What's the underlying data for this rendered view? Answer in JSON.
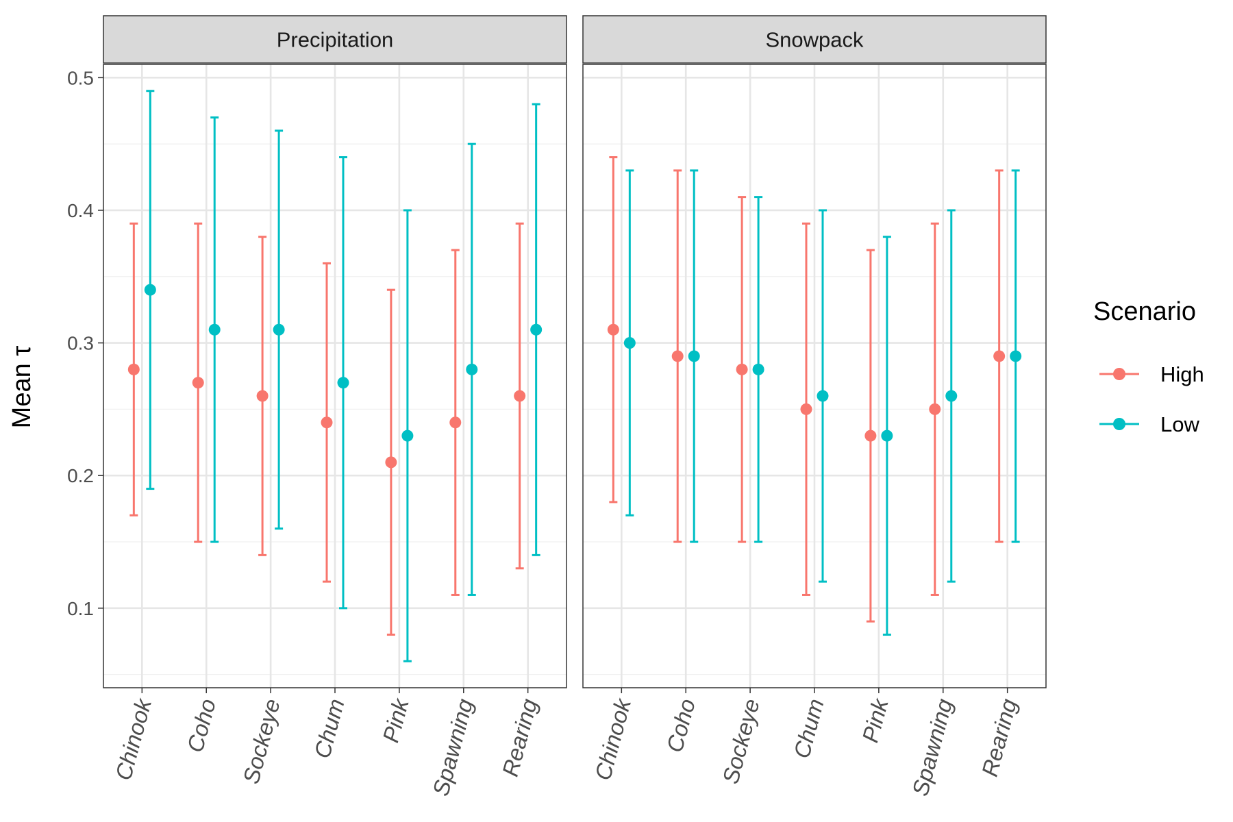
{
  "chart_data": {
    "type": "errorbar",
    "ylabel": "Mean τ",
    "ylim": [
      0.04,
      0.51
    ],
    "y_ticks": [
      "0.1",
      "0.2",
      "0.3",
      "0.4",
      "0.5"
    ],
    "y_tick_values": [
      0.1,
      0.2,
      0.3,
      0.4,
      0.5
    ],
    "grid": true,
    "legend": {
      "title": "Scenario",
      "position": "right",
      "entries": [
        {
          "name": "High",
          "color": "#F8766D"
        },
        {
          "name": "Low",
          "color": "#00BFC4"
        }
      ]
    },
    "categories": [
      "Chinook",
      "Coho",
      "Sockeye",
      "Chum",
      "Pink",
      "Spawning",
      "Rearing"
    ],
    "panels": [
      {
        "title": "Precipitation",
        "series": [
          {
            "name": "High",
            "mean": [
              0.28,
              0.27,
              0.26,
              0.24,
              0.21,
              0.24,
              0.26
            ],
            "lower": [
              0.17,
              0.15,
              0.14,
              0.12,
              0.08,
              0.11,
              0.13
            ],
            "upper": [
              0.39,
              0.39,
              0.38,
              0.36,
              0.34,
              0.37,
              0.39
            ]
          },
          {
            "name": "Low",
            "mean": [
              0.34,
              0.31,
              0.31,
              0.27,
              0.23,
              0.28,
              0.31
            ],
            "lower": [
              0.19,
              0.15,
              0.16,
              0.1,
              0.06,
              0.11,
              0.14
            ],
            "upper": [
              0.49,
              0.47,
              0.46,
              0.44,
              0.4,
              0.45,
              0.48
            ]
          }
        ]
      },
      {
        "title": "Snowpack",
        "series": [
          {
            "name": "High",
            "mean": [
              0.31,
              0.29,
              0.28,
              0.25,
              0.23,
              0.25,
              0.29
            ],
            "lower": [
              0.18,
              0.15,
              0.15,
              0.11,
              0.09,
              0.11,
              0.15
            ],
            "upper": [
              0.44,
              0.43,
              0.41,
              0.39,
              0.37,
              0.39,
              0.43
            ]
          },
          {
            "name": "Low",
            "mean": [
              0.3,
              0.29,
              0.28,
              0.26,
              0.23,
              0.26,
              0.29
            ],
            "lower": [
              0.17,
              0.15,
              0.15,
              0.12,
              0.08,
              0.12,
              0.15
            ],
            "upper": [
              0.43,
              0.43,
              0.41,
              0.4,
              0.38,
              0.4,
              0.43
            ]
          }
        ]
      }
    ]
  }
}
